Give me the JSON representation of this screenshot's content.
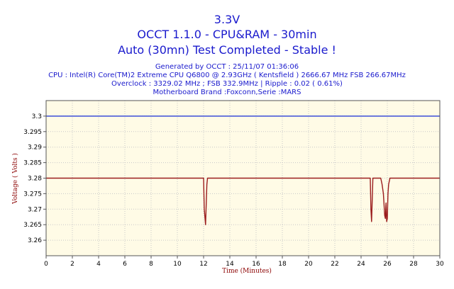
{
  "chart_data": {
    "type": "line",
    "title_lines": [
      "3.3V",
      "OCCT 1.1.0 - CPU&RAM - 30min",
      "Auto (30mn) Test Completed - Stable !"
    ],
    "info_lines": [
      "Generated by OCCT : 25/11/07 01:36:06",
      "CPU : Intel(R) Core(TM)2 Extreme CPU Q6800  @ 2.93GHz ( Kentsfield ) 2666.67 MHz FSB 266.67MHz",
      "Overclock : 3329.02 MHz ; FSB 332.9MHz | Ripple : 0.02 ( 0.61%)",
      "Motherboard Brand :Foxconn,Serie :MARS"
    ],
    "xlabel": "Time (Minutes)",
    "ylabel": "Voltage ( Volts )",
    "xlim": [
      0,
      30
    ],
    "ylim": [
      3.255,
      3.305
    ],
    "x_ticks": [
      0,
      2,
      4,
      6,
      8,
      10,
      12,
      14,
      16,
      18,
      20,
      22,
      24,
      26,
      28,
      30
    ],
    "y_ticks": [
      "3.26",
      "3.265",
      "3.27",
      "3.275",
      "3.28",
      "3.285",
      "3.29",
      "3.295",
      "3.3"
    ],
    "grid": true,
    "plot_background": "#fffbe6",
    "series": [
      {
        "color": "#2a3fd8",
        "x": [
          0,
          30
        ],
        "y": [
          3.3,
          3.3
        ]
      },
      {
        "color": "#9b1d1d",
        "x": [
          0,
          12.0,
          12.05,
          12.15,
          12.25,
          12.3,
          24.7,
          24.75,
          24.8,
          24.9,
          25.5,
          25.6,
          25.7,
          25.8,
          25.85,
          25.9,
          25.95,
          26.0,
          26.05,
          26.1,
          26.2,
          30
        ],
        "y": [
          3.28,
          3.28,
          3.27,
          3.265,
          3.278,
          3.28,
          3.28,
          3.27,
          3.266,
          3.28,
          3.28,
          3.278,
          3.275,
          3.268,
          3.267,
          3.272,
          3.266,
          3.267,
          3.275,
          3.278,
          3.28,
          3.28
        ]
      }
    ]
  }
}
